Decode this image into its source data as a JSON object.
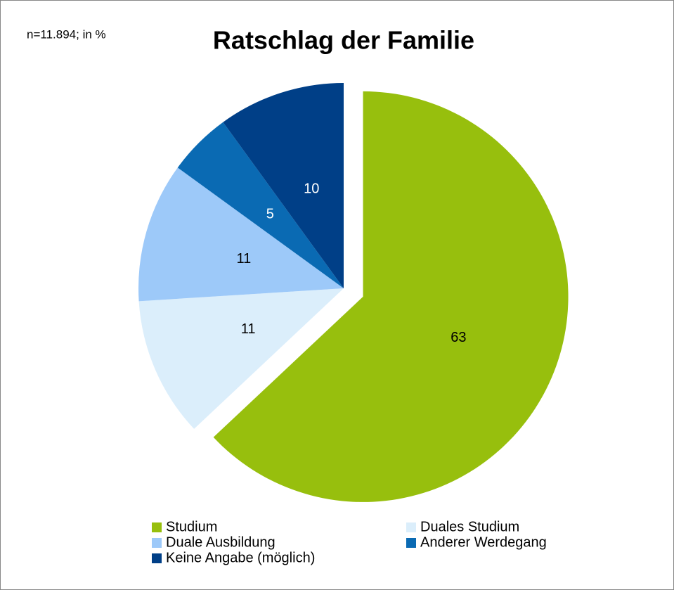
{
  "chart_data": {
    "type": "pie",
    "title": "Ratschlag der Familie",
    "subtitle": "n=11.894; in %",
    "categories": [
      "Studium",
      "Duales Studium",
      "Duale Ausbildung",
      "Anderer Werdegang",
      "Keine Angabe (möglich)"
    ],
    "values": [
      63,
      11,
      11,
      5,
      10
    ],
    "colors": [
      "#97bf0d",
      "#dbeefb",
      "#9dc9f9",
      "#0a6ab3",
      "#003f87"
    ],
    "exploded": [
      0
    ]
  }
}
